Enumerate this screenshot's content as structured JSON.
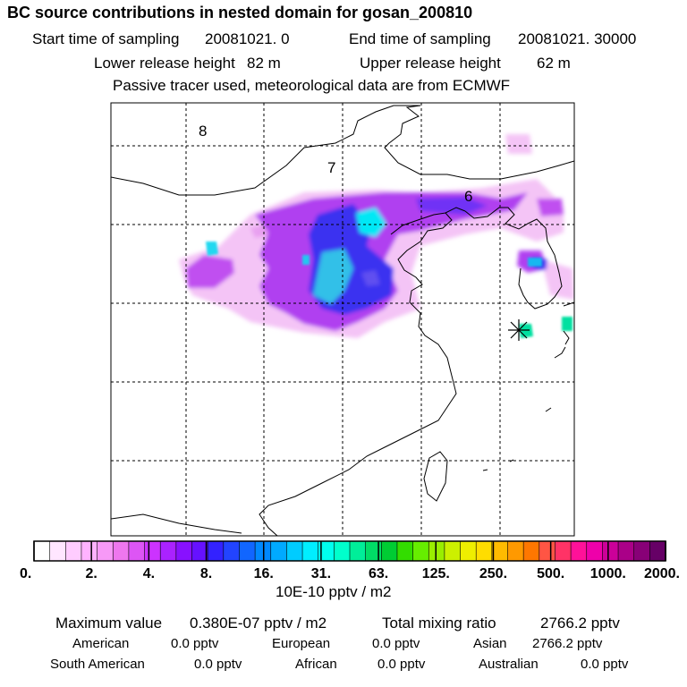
{
  "header": {
    "title": "BC  source contributions in nested domain for gosan_200810",
    "start_label": "Start time of sampling",
    "start_value": "20081021.     0",
    "end_label": "End time of sampling",
    "end_value": "20081021. 30000",
    "lower_label": "Lower release height",
    "lower_value": "82 m",
    "upper_label": "Upper release height",
    "upper_value": "62 m",
    "note": "Passive tracer used, meteorological data are from ECMWF"
  },
  "map": {
    "grid_labels": [
      "8",
      "7",
      "6"
    ],
    "receptor_marker": "star-marker"
  },
  "colorbar": {
    "ticks": [
      "0.",
      "2.",
      "4.",
      "8.",
      "16.",
      "31.",
      "63.",
      "125.",
      "250.",
      "500.",
      "1000.",
      "2000."
    ],
    "unit_label": "10E-10 pptv / m2",
    "colors": [
      "#ffffff",
      "#ffe6ff",
      "#ffccff",
      "#ffb3ff",
      "#f799f7",
      "#ee77ee",
      "#dd55f5",
      "#cc33ff",
      "#aa22ff",
      "#8811ff",
      "#6611ff",
      "#3322ff",
      "#2244ff",
      "#1166ff",
      "#0088ff",
      "#00aaff",
      "#00ccff",
      "#00eeff",
      "#00ffee",
      "#00ffcc",
      "#00ee99",
      "#00dd66",
      "#00cc33",
      "#33dd00",
      "#66ee00",
      "#99ee00",
      "#ccf000",
      "#eeee00",
      "#ffdd00",
      "#ffbb00",
      "#ff9900",
      "#ff7700",
      "#ff5544",
      "#ff3366",
      "#ff1199",
      "#ee00aa",
      "#cc0099",
      "#aa0088",
      "#880077",
      "#660066"
    ]
  },
  "footer": {
    "max_label": "Maximum value",
    "max_value": "0.380E-07 pptv / m2",
    "total_label": "Total mixing ratio",
    "total_value": "2766.2 pptv",
    "regions": [
      {
        "name": "American",
        "value": "0.0 pptv"
      },
      {
        "name": "European",
        "value": "0.0 pptv"
      },
      {
        "name": "Asian",
        "value": "2766.2 pptv"
      },
      {
        "name": "South American",
        "value": "0.0 pptv"
      },
      {
        "name": "African",
        "value": "0.0 pptv"
      },
      {
        "name": "Australian",
        "value": "0.0 pptv"
      }
    ]
  },
  "palette": {
    "violet": "#b040f0",
    "magenta_light": "#f0b0f5",
    "blue": "#3530f0",
    "cyan": "#00f0f5",
    "teal": "#30c0e8",
    "green_teal": "#00e0a0"
  }
}
